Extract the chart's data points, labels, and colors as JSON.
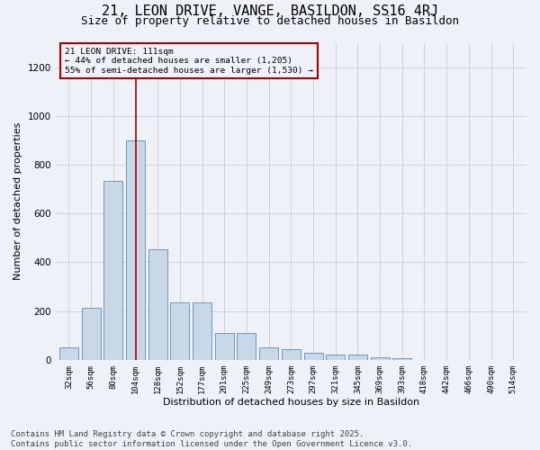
{
  "title": "21, LEON DRIVE, VANGE, BASILDON, SS16 4RJ",
  "subtitle": "Size of property relative to detached houses in Basildon",
  "xlabel": "Distribution of detached houses by size in Basildon",
  "ylabel": "Number of detached properties",
  "categories": [
    "32sqm",
    "56sqm",
    "80sqm",
    "104sqm",
    "128sqm",
    "152sqm",
    "177sqm",
    "201sqm",
    "225sqm",
    "249sqm",
    "273sqm",
    "297sqm",
    "321sqm",
    "345sqm",
    "369sqm",
    "393sqm",
    "418sqm",
    "442sqm",
    "466sqm",
    "490sqm",
    "514sqm"
  ],
  "values": [
    50,
    215,
    735,
    900,
    455,
    235,
    235,
    110,
    110,
    50,
    45,
    30,
    20,
    20,
    10,
    5,
    0,
    0,
    0,
    0,
    0
  ],
  "bar_color": "#c8d8e8",
  "bar_edge_color": "#5b8db8",
  "grid_color": "#cccccc",
  "bg_color": "#eef2f8",
  "vline_x": 3.0,
  "vline_color": "#aa0000",
  "annotation_title": "21 LEON DRIVE: 111sqm",
  "annotation_line1": "← 44% of detached houses are smaller (1,205)",
  "annotation_line2": "55% of semi-detached houses are larger (1,530) →",
  "annotation_box_color": "#aa0000",
  "ylim": [
    0,
    1300
  ],
  "yticks": [
    0,
    200,
    400,
    600,
    800,
    1000,
    1200
  ],
  "footer1": "Contains HM Land Registry data © Crown copyright and database right 2025.",
  "footer2": "Contains public sector information licensed under the Open Government Licence v3.0.",
  "title_fontsize": 11,
  "subtitle_fontsize": 9,
  "footer_fontsize": 6.5
}
